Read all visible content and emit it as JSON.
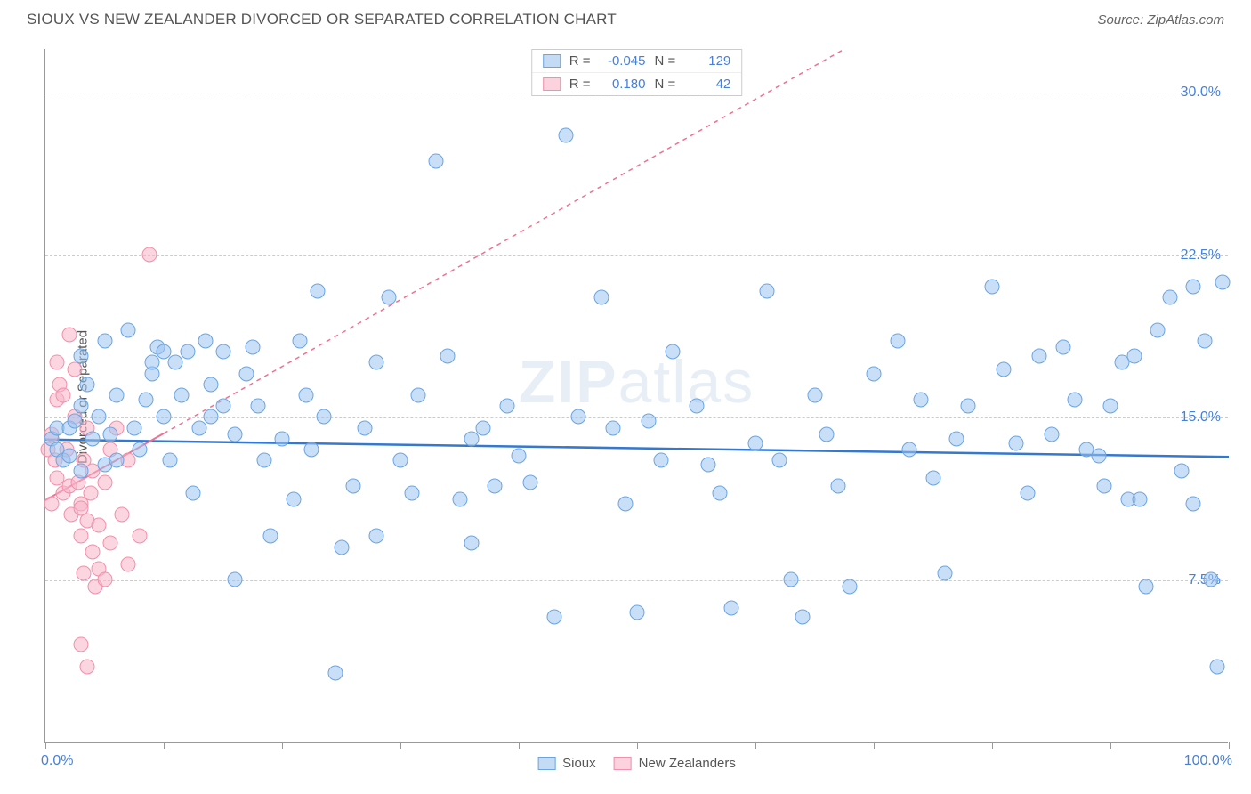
{
  "header": {
    "title": "SIOUX VS NEW ZEALANDER DIVORCED OR SEPARATED CORRELATION CHART",
    "source": "Source: ZipAtlas.com"
  },
  "watermark": {
    "part1": "ZIP",
    "part2": "atlas"
  },
  "chart": {
    "type": "scatter",
    "y_axis": {
      "label": "Divorced or Separated",
      "min": 0,
      "max": 32,
      "ticks": [
        {
          "value": 7.5,
          "label": "7.5%"
        },
        {
          "value": 15.0,
          "label": "15.0%"
        },
        {
          "value": 22.5,
          "label": "22.5%"
        },
        {
          "value": 30.0,
          "label": "30.0%"
        }
      ],
      "label_color": "#4780d8",
      "grid_color": "#cccccc"
    },
    "x_axis": {
      "min": 0,
      "max": 100,
      "tick_positions": [
        0,
        10,
        20,
        30,
        40,
        50,
        60,
        70,
        80,
        90,
        100
      ],
      "left_label": "0.0%",
      "right_label": "100.0%",
      "label_color": "#4780d8"
    },
    "stats_legend": {
      "rows": [
        {
          "swatch": "blue",
          "r_label": "R =",
          "r": "-0.045",
          "n_label": "N =",
          "n": "129"
        },
        {
          "swatch": "pink",
          "r_label": "R =",
          "r": "0.180",
          "n_label": "N =",
          "n": "42"
        }
      ]
    },
    "bottom_legend": {
      "items": [
        {
          "swatch": "blue",
          "label": "Sioux"
        },
        {
          "swatch": "pink",
          "label": "New Zealanders"
        }
      ]
    },
    "series": {
      "sioux": {
        "color_fill": "rgba(156,195,240,0.55)",
        "color_stroke": "#6ba5e0",
        "marker_size": 17,
        "trend": {
          "y_at_x0": 14.0,
          "y_at_x100": 13.2,
          "stroke": "#3478d0",
          "width": 2.5,
          "dash": "none"
        },
        "points": [
          [
            0.5,
            14
          ],
          [
            1,
            13.5
          ],
          [
            1,
            14.5
          ],
          [
            1.5,
            13
          ],
          [
            2,
            14.5
          ],
          [
            2,
            13.2
          ],
          [
            2.5,
            14.8
          ],
          [
            3,
            15.5
          ],
          [
            3,
            12.5
          ],
          [
            3,
            17.8
          ],
          [
            3.5,
            16.5
          ],
          [
            4,
            14
          ],
          [
            4.5,
            15
          ],
          [
            5,
            12.8
          ],
          [
            5,
            18.5
          ],
          [
            5.5,
            14.2
          ],
          [
            6,
            13
          ],
          [
            6,
            16
          ],
          [
            7,
            19
          ],
          [
            7.5,
            14.5
          ],
          [
            8,
            13.5
          ],
          [
            8.5,
            15.8
          ],
          [
            9,
            17
          ],
          [
            9,
            17.5
          ],
          [
            9.5,
            18.2
          ],
          [
            10,
            15
          ],
          [
            10,
            18
          ],
          [
            10.5,
            13
          ],
          [
            11,
            17.5
          ],
          [
            11.5,
            16
          ],
          [
            12,
            18
          ],
          [
            12.5,
            11.5
          ],
          [
            13,
            14.5
          ],
          [
            13.5,
            18.5
          ],
          [
            14,
            15
          ],
          [
            14,
            16.5
          ],
          [
            15,
            18
          ],
          [
            15,
            15.5
          ],
          [
            16,
            14.2
          ],
          [
            16,
            7.5
          ],
          [
            17,
            17
          ],
          [
            17.5,
            18.2
          ],
          [
            18,
            15.5
          ],
          [
            18.5,
            13
          ],
          [
            19,
            9.5
          ],
          [
            20,
            14
          ],
          [
            21,
            11.2
          ],
          [
            21.5,
            18.5
          ],
          [
            22,
            16
          ],
          [
            22.5,
            13.5
          ],
          [
            23,
            20.8
          ],
          [
            23.5,
            15
          ],
          [
            24.5,
            3.2
          ],
          [
            25,
            9
          ],
          [
            26,
            11.8
          ],
          [
            27,
            14.5
          ],
          [
            28,
            17.5
          ],
          [
            28,
            9.5
          ],
          [
            29,
            20.5
          ],
          [
            30,
            13
          ],
          [
            31,
            11.5
          ],
          [
            31.5,
            16
          ],
          [
            33,
            26.8
          ],
          [
            34,
            17.8
          ],
          [
            35,
            11.2
          ],
          [
            36,
            14
          ],
          [
            36,
            9.2
          ],
          [
            37,
            14.5
          ],
          [
            38,
            11.8
          ],
          [
            39,
            15.5
          ],
          [
            40,
            13.2
          ],
          [
            41,
            12
          ],
          [
            43,
            5.8
          ],
          [
            44,
            28
          ],
          [
            45,
            15
          ],
          [
            47,
            20.5
          ],
          [
            48,
            14.5
          ],
          [
            49,
            11
          ],
          [
            50,
            6
          ],
          [
            51,
            14.8
          ],
          [
            52,
            13
          ],
          [
            53,
            18
          ],
          [
            55,
            15.5
          ],
          [
            56,
            12.8
          ],
          [
            57,
            11.5
          ],
          [
            58,
            6.2
          ],
          [
            60,
            13.8
          ],
          [
            61,
            20.8
          ],
          [
            62,
            13
          ],
          [
            63,
            7.5
          ],
          [
            64,
            5.8
          ],
          [
            65,
            16
          ],
          [
            66,
            14.2
          ],
          [
            67,
            11.8
          ],
          [
            68,
            7.2
          ],
          [
            70,
            17
          ],
          [
            72,
            18.5
          ],
          [
            73,
            13.5
          ],
          [
            74,
            15.8
          ],
          [
            75,
            12.2
          ],
          [
            76,
            7.8
          ],
          [
            77,
            14
          ],
          [
            78,
            15.5
          ],
          [
            80,
            21
          ],
          [
            81,
            17.2
          ],
          [
            82,
            13.8
          ],
          [
            83,
            11.5
          ],
          [
            84,
            17.8
          ],
          [
            85,
            14.2
          ],
          [
            86,
            18.2
          ],
          [
            87,
            15.8
          ],
          [
            88,
            13.5
          ],
          [
            89,
            13.2
          ],
          [
            89.5,
            11.8
          ],
          [
            90,
            15.5
          ],
          [
            91,
            17.5
          ],
          [
            91.5,
            11.2
          ],
          [
            92,
            17.8
          ],
          [
            92.5,
            11.2
          ],
          [
            93,
            7.2
          ],
          [
            94,
            19
          ],
          [
            95,
            20.5
          ],
          [
            96,
            12.5
          ],
          [
            97,
            21
          ],
          [
            97,
            11
          ],
          [
            98,
            18.5
          ],
          [
            98.5,
            7.5
          ],
          [
            99,
            3.5
          ],
          [
            99.5,
            21.2
          ]
        ]
      },
      "new_zealanders": {
        "color_fill": "rgba(248,180,200,0.55)",
        "color_stroke": "#f090ab",
        "marker_size": 17,
        "trend": {
          "y_at_x0": 11.2,
          "y_at_x100": 42.0,
          "stroke": "#f07090",
          "width": 2,
          "dash": "5,5",
          "solid_until_x": 10
        },
        "points": [
          [
            0.2,
            13.5
          ],
          [
            0.5,
            11
          ],
          [
            0.5,
            14.2
          ],
          [
            0.8,
            13
          ],
          [
            1,
            12.2
          ],
          [
            1,
            15.8
          ],
          [
            1,
            17.5
          ],
          [
            1.2,
            16.5
          ],
          [
            1.5,
            11.5
          ],
          [
            1.5,
            16
          ],
          [
            1.8,
            13.5
          ],
          [
            2,
            11.8
          ],
          [
            2,
            18.8
          ],
          [
            2.2,
            10.5
          ],
          [
            2.5,
            17.2
          ],
          [
            2.5,
            15
          ],
          [
            2.8,
            12
          ],
          [
            3,
            11
          ],
          [
            3,
            9.5
          ],
          [
            3,
            10.8
          ],
          [
            3.2,
            13
          ],
          [
            3.5,
            14.5
          ],
          [
            3.5,
            10.2
          ],
          [
            3.8,
            11.5
          ],
          [
            4,
            8.8
          ],
          [
            4,
            12.5
          ],
          [
            4.2,
            7.2
          ],
          [
            4.5,
            10
          ],
          [
            4.5,
            8
          ],
          [
            5,
            7.5
          ],
          [
            5,
            12
          ],
          [
            5.5,
            9.2
          ],
          [
            5.5,
            13.5
          ],
          [
            6,
            14.5
          ],
          [
            6.5,
            10.5
          ],
          [
            7,
            8.2
          ],
          [
            7,
            13
          ],
          [
            8,
            9.5
          ],
          [
            8.8,
            22.5
          ],
          [
            3,
            4.5
          ],
          [
            3.5,
            3.5
          ],
          [
            3.2,
            7.8
          ]
        ]
      }
    }
  }
}
